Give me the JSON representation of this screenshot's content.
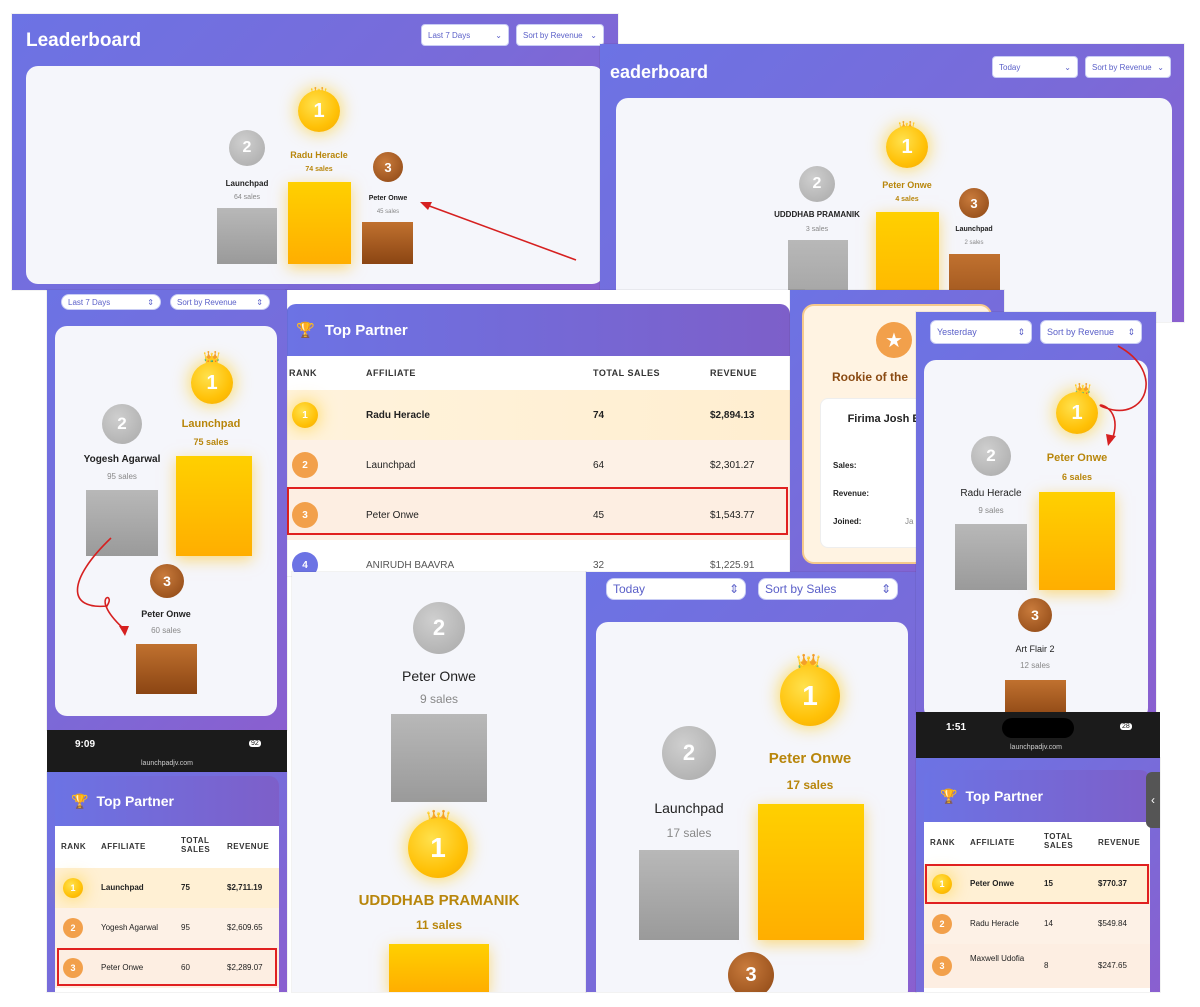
{
  "s1": {
    "title": "Leaderboard",
    "period": "Last 7 Days",
    "sort": "Sort by Revenue",
    "p1": {
      "rank": "1",
      "name": "Radu Heracle",
      "sales": "74 sales"
    },
    "p2": {
      "rank": "2",
      "name": "Launchpad",
      "sales": "64 sales"
    },
    "p3": {
      "rank": "3",
      "name": "Peter Onwe",
      "sales": "45 sales"
    }
  },
  "s2": {
    "title": "eaderboard",
    "period": "Today",
    "sort": "Sort by Revenue",
    "p1": {
      "rank": "1",
      "name": "Peter Onwe",
      "sales": "4 sales"
    },
    "p2": {
      "rank": "2",
      "name": "UDDDHAB PRAMANIK",
      "sales": "3 sales"
    },
    "p3": {
      "rank": "3",
      "name": "Launchpad",
      "sales": "2 sales"
    }
  },
  "s3": {
    "period": "Last 7 Days",
    "sort": "Sort by Revenue",
    "p1": {
      "rank": "1",
      "name": "Launchpad",
      "sales": "75 sales"
    },
    "p2": {
      "rank": "2",
      "name": "Yogesh Agarwal",
      "sales": "95 sales"
    },
    "p3": {
      "rank": "3",
      "name": "Peter Onwe",
      "sales": "60 sales"
    }
  },
  "s4": {
    "title": "Top Partner",
    "headers": [
      "RANK",
      "AFFILIATE",
      "TOTAL SALES",
      "REVENUE"
    ],
    "rows": [
      {
        "rank": "1",
        "name": "Radu Heracle",
        "sales": "74",
        "revenue": "$2,894.13"
      },
      {
        "rank": "2",
        "name": "Launchpad",
        "sales": "64",
        "revenue": "$2,301.27"
      },
      {
        "rank": "3",
        "name": "Peter Onwe",
        "sales": "45",
        "revenue": "$1,543.77"
      },
      {
        "rank": "4",
        "name": "ANIRUDH BAAVRA",
        "sales": "32",
        "revenue": "$1,225.91"
      }
    ]
  },
  "s5": {
    "title": "Rookie of the",
    "name": "Firima Josh Bariaara",
    "sales_label": "Sales:",
    "revenue_label": "Revenue:",
    "joined_label": "Joined:",
    "joined_value": "Ja"
  },
  "s6": {
    "period": "Yesterday",
    "sort": "Sort by Revenue",
    "p1": {
      "rank": "1",
      "name": "Peter Onwe",
      "sales": "6 sales"
    },
    "p2": {
      "rank": "2",
      "name": "Radu Heracle",
      "sales": "9 sales"
    },
    "p3": {
      "rank": "3",
      "name": "Art Flair 2",
      "sales": "12 sales"
    }
  },
  "s7": {
    "time": "9:09",
    "url": "launchpadjv.com",
    "battery": "92",
    "title": "Top Partner",
    "headers": [
      "RANK",
      "AFFILIATE",
      "TOTAL SALES",
      "REVENUE"
    ],
    "rows": [
      {
        "rank": "1",
        "name": "Launchpad",
        "sales": "75",
        "revenue": "$2,711.19"
      },
      {
        "rank": "2",
        "name": "Yogesh Agarwal",
        "sales": "95",
        "revenue": "$2,609.65"
      },
      {
        "rank": "3",
        "name": "Peter Onwe",
        "sales": "60",
        "revenue": "$2,289.07"
      }
    ]
  },
  "s8": {
    "p1": {
      "rank": "1",
      "name": "UDDDHAB PRAMANIK",
      "sales": "11 sales"
    },
    "p2": {
      "rank": "2",
      "name": "Peter Onwe",
      "sales": "9 sales"
    }
  },
  "s9": {
    "period": "Today",
    "sort": "Sort by Sales",
    "p1": {
      "rank": "1",
      "name": "Peter Onwe",
      "sales": "17 sales"
    },
    "p2": {
      "rank": "2",
      "name": "Launchpad",
      "sales": "17 sales"
    },
    "p3": {
      "rank": "3"
    }
  },
  "s10": {
    "time": "1:51",
    "url": "launchpadjv.com",
    "battery": "28",
    "title": "Top Partner",
    "headers": [
      "RANK",
      "AFFILIATE",
      "TOTAL SALES",
      "REVENUE"
    ],
    "rows": [
      {
        "rank": "1",
        "name": "Peter Onwe",
        "sales": "15",
        "revenue": "$770.37"
      },
      {
        "rank": "2",
        "name": "Radu Heracle",
        "sales": "14",
        "revenue": "$549.84"
      },
      {
        "rank": "3",
        "name": "Maxwell Udofia",
        "sales": "8",
        "revenue": "$247.65"
      }
    ]
  },
  "icons": {
    "crown": "👑",
    "trophy": "🏆",
    "star": "★",
    "chevron": "⌄",
    "updown": "⇕"
  }
}
